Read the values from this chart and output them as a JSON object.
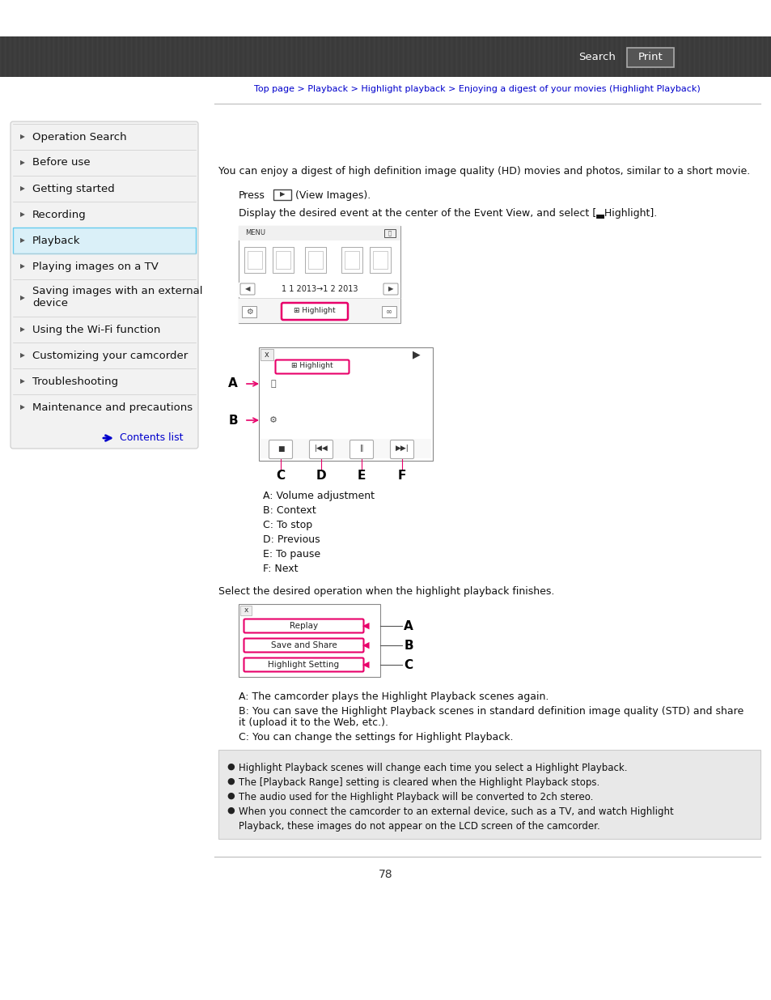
{
  "page_number": "78",
  "header_bg": "#3d3d3d",
  "header_text_color": "#ffffff",
  "breadcrumb": "Top page > Playback > Highlight playback > Enjoying a digest of your movies (Highlight Playback)",
  "breadcrumb_color": "#0000cc",
  "sidebar_bg": "#f2f2f2",
  "sidebar_border": "#cccccc",
  "sidebar_active_bg": "#daf0f8",
  "sidebar_active_border_top": "#66ccee",
  "sidebar_active_border_bottom": "#66ccee",
  "sidebar_items": [
    "Operation Search",
    "Before use",
    "Getting started",
    "Recording",
    "Playback",
    "Playing images on a TV",
    "Saving images with an external\ndevice",
    "Using the Wi-Fi function",
    "Customizing your camcorder",
    "Troubleshooting",
    "Maintenance and precautions"
  ],
  "sidebar_active_item": "Playback",
  "contents_list_color": "#0000cc",
  "main_text_color": "#111111",
  "line_color": "#bbbbbb",
  "note_bg": "#e8e8e8",
  "pink_color": "#e8006a",
  "body_line1": "You can enjoy a digest of high definition image quality (HD) movies and photos, similar to a short movie.",
  "body_line2a": "Press ",
  "body_line2b": " (View Images).",
  "body_line3": "Display the desired event at the center of the Event View, and select [▃Highlight].",
  "label_descriptions": [
    ": Volume adjustment",
    ": Context",
    ": To stop",
    ": Previous",
    ": To pause",
    ": Next"
  ],
  "finish_text": "Select the desired operation when the highlight playback finishes.",
  "finish_labels": [
    "A",
    "B",
    "C"
  ],
  "finish_option_labels": [
    "Replay",
    "Save and Share",
    "Highlight Setting"
  ],
  "finish_desc_A": ": The camcorder plays the Highlight Playback scenes again.",
  "finish_desc_B1": ": You can save the Highlight Playback scenes in standard definition image quality (STD) and share",
  "finish_desc_B2": "it (upload it to the Web, etc.).",
  "finish_desc_C": ": You can change the settings for Highlight Playback.",
  "note_bullets": [
    "Highlight Playback scenes will change each time you select a Highlight Playback.",
    "The [Playback Range] setting is cleared when the Highlight Playback stops.",
    "The audio used for the Highlight Playback will be converted to 2ch stereo.",
    "When you connect the camcorder to an external device, such as a TV, and watch Highlight",
    "Playback, these images do not appear on the LCD screen of the camcorder."
  ]
}
